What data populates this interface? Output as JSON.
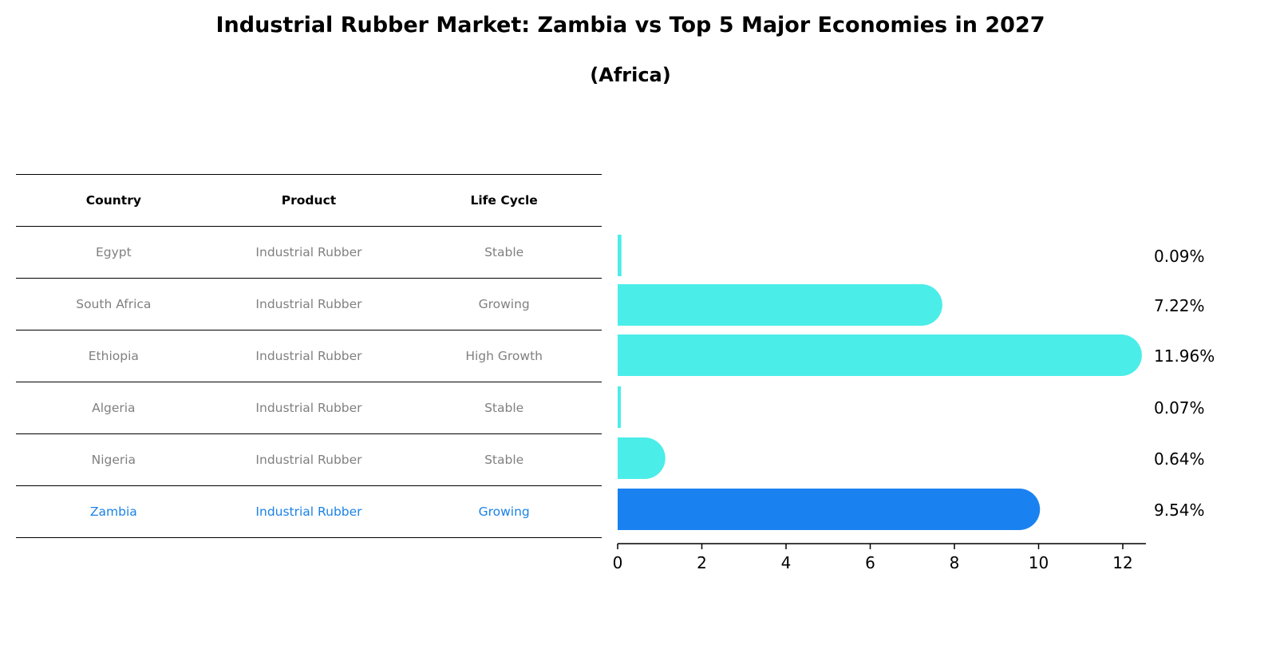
{
  "title": "Industrial Rubber Market: Zambia vs Top 5 Major Economies in 2027",
  "subtitle": "(Africa)",
  "table": {
    "headers": [
      "Country",
      "Product",
      "Life Cycle"
    ],
    "rows": [
      {
        "country": "Egypt",
        "product": "Industrial Rubber",
        "life_cycle": "Stable"
      },
      {
        "country": "South Africa",
        "product": "Industrial Rubber",
        "life_cycle": "Growing"
      },
      {
        "country": "Ethiopia",
        "product": "Industrial Rubber",
        "life_cycle": "High Growth"
      },
      {
        "country": "Algeria",
        "product": "Industrial Rubber",
        "life_cycle": "Stable"
      },
      {
        "country": "Nigeria",
        "product": "Industrial Rubber",
        "life_cycle": "Stable"
      },
      {
        "country": "Zambia",
        "product": "Industrial Rubber",
        "life_cycle": "Growing"
      }
    ]
  },
  "chart_data": {
    "type": "bar",
    "orientation": "horizontal",
    "categories": [
      "Egypt",
      "South Africa",
      "Ethiopia",
      "Algeria",
      "Nigeria",
      "Zambia"
    ],
    "values": [
      0.09,
      7.22,
      11.96,
      0.07,
      0.64,
      9.54
    ],
    "data_labels": [
      "0.09%",
      "7.22%",
      "11.96%",
      "0.07%",
      "0.64%",
      "9.54%"
    ],
    "highlight": "Zambia",
    "colors": {
      "default": "#4bede8",
      "highlight": "#1a82f0",
      "highlight_text": "#1a82e6"
    },
    "xlim": [
      0,
      12.5
    ],
    "xticks": [
      0,
      2,
      4,
      6,
      8,
      10,
      12
    ],
    "xlabel": "",
    "ylabel": "",
    "grid": false
  }
}
